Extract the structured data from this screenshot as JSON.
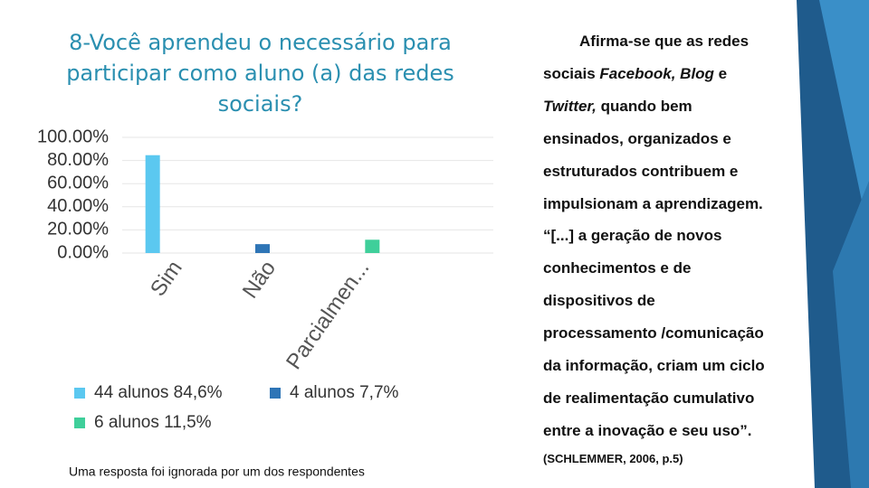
{
  "chart_data": {
    "type": "bar",
    "title": "8-Você aprendeu o necessário para participar como aluno (a) das redes sociais?",
    "categories": [
      "Sim",
      "Não",
      "Parcialmen..."
    ],
    "series": [
      {
        "name": "44 alunos 84,6%",
        "color": "#5bc8f0",
        "values": [
          84.6,
          null,
          null
        ]
      },
      {
        "name": "4 alunos 7,7%",
        "color": "#2e75b6",
        "values": [
          null,
          7.7,
          null
        ]
      },
      {
        "name": "6 alunos 11,5%",
        "color": "#3fcf9a",
        "values": [
          null,
          null,
          11.5
        ]
      }
    ],
    "ylim": [
      0,
      100
    ],
    "yticks": [
      {
        "value": 0,
        "label": "0.00%"
      },
      {
        "value": 20,
        "label": "20.00%"
      },
      {
        "value": 40,
        "label": "40.00%"
      },
      {
        "value": 60,
        "label": "60.00%"
      },
      {
        "value": 80,
        "label": "80.00%"
      },
      {
        "value": 100,
        "label": "100.00%"
      }
    ],
    "note": "Uma resposta foi ignorada por um dos respondentes"
  },
  "side_text": {
    "lines": [
      [
        {
          "text": "Afirma-se que as redes"
        }
      ],
      [
        {
          "text": "sociais "
        },
        {
          "text": "Facebook, Blog",
          "italic": true
        },
        {
          "text": " e"
        }
      ],
      [
        {
          "text": "Twitter,",
          "italic": true
        },
        {
          "text": " quando bem"
        }
      ],
      [
        {
          "text": "ensinados, organizados e"
        }
      ],
      [
        {
          "text": "estruturados contribuem e"
        }
      ],
      [
        {
          "text": "impulsionam a aprendizagem."
        }
      ],
      [
        {
          "text": "“[...] a geração de novos"
        }
      ],
      [
        {
          "text": "conhecimentos e de"
        }
      ],
      [
        {
          "text": "dispositivos de"
        }
      ],
      [
        {
          "text": "processamento /comunicação"
        }
      ],
      [
        {
          "text": "da informação, criam um ciclo"
        }
      ],
      [
        {
          "text": "de realimentação cumulativo"
        }
      ],
      [
        {
          "text": "entre a inovação e seu uso”."
        }
      ]
    ],
    "citation": "(SCHLEMMER, 2006, p.5)"
  }
}
